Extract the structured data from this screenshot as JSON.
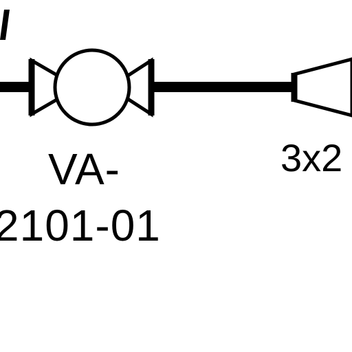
{
  "valve": {
    "tag_line_1": "VA-",
    "tag_line_2": "2101-01"
  },
  "reducer": {
    "size_label": "3x2"
  },
  "colors": {
    "line": "#000000",
    "background": "#ffffff"
  },
  "icons": [
    "pipe-line-icon",
    "ball-valve-icon",
    "reducer-icon"
  ]
}
